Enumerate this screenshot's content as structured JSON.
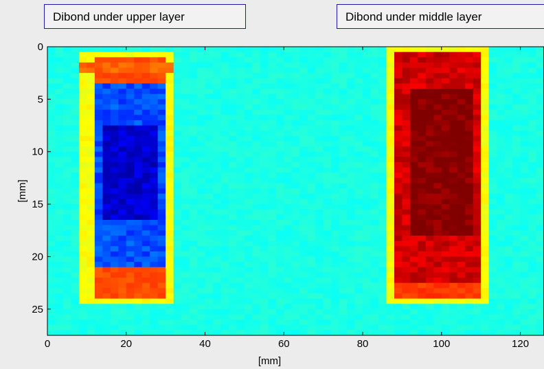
{
  "annotations": {
    "left": "Dibond under upper layer",
    "right": "Dibond under middle layer"
  },
  "colors": {
    "background": "#ececec",
    "axes_box": "#000000"
  },
  "chart_data": {
    "type": "heatmap",
    "title": "",
    "xlabel": "[mm]",
    "ylabel": "[mm]",
    "xlim": [
      0,
      126
    ],
    "ylim": [
      0,
      27.5
    ],
    "y_inverted": true,
    "xticks": [
      "0",
      "20",
      "40",
      "60",
      "80",
      "100",
      "120"
    ],
    "yticks": [
      "0",
      "5",
      "10",
      "15",
      "20",
      "25"
    ],
    "colormap": "jet",
    "cell_size_mm": [
      2,
      0.5
    ],
    "background_value": 0.4,
    "regions": [
      {
        "name": "upper",
        "x": [
          9,
          33
        ],
        "y": [
          0.5,
          24.5
        ],
        "edge_value": 0.62,
        "rim_value": 0.8,
        "core_x": [
          12,
          30
        ],
        "core_y": [
          3.5,
          21
        ],
        "core_value": 0.2,
        "deep_x": [
          14,
          28
        ],
        "deep_y": [
          7.5,
          16.5
        ],
        "deep_value": 0.08,
        "top_band_y": [
          1.5,
          2.5
        ],
        "top_band_value": 0.78
      },
      {
        "name": "middle",
        "x": [
          86,
          113
        ],
        "y": [
          0,
          24.5
        ],
        "edge_value": 0.62,
        "rim_value": 0.82,
        "core_x": [
          89,
          110
        ],
        "core_y": [
          0.5,
          22.5
        ],
        "core_value": 0.92,
        "deep_x": [
          92,
          108
        ],
        "deep_y": [
          4,
          18
        ],
        "deep_value": 1.0
      }
    ]
  }
}
